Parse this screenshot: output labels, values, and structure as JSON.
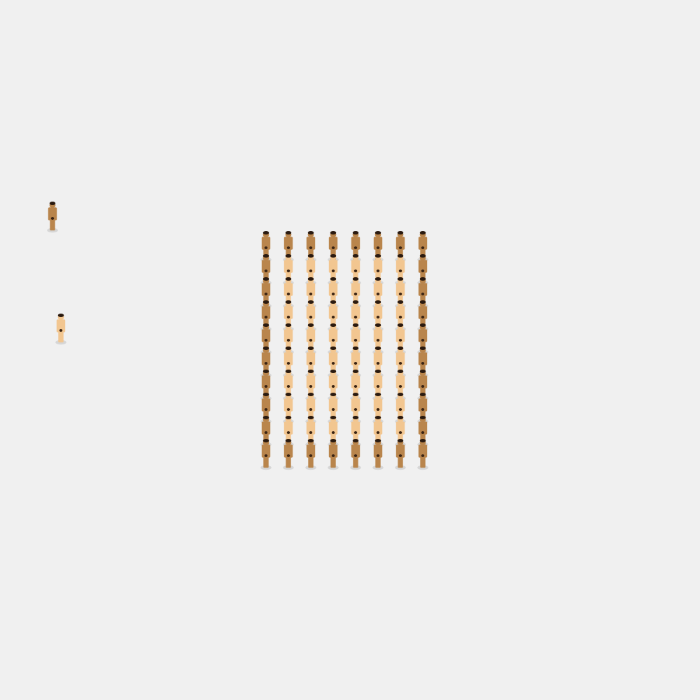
{
  "chart_data": {
    "type": "pictogram",
    "values": [
      33,
      49
    ],
    "colors": [
      "#b9854c",
      "#f2c690"
    ],
    "tick_labels": false
  }
}
